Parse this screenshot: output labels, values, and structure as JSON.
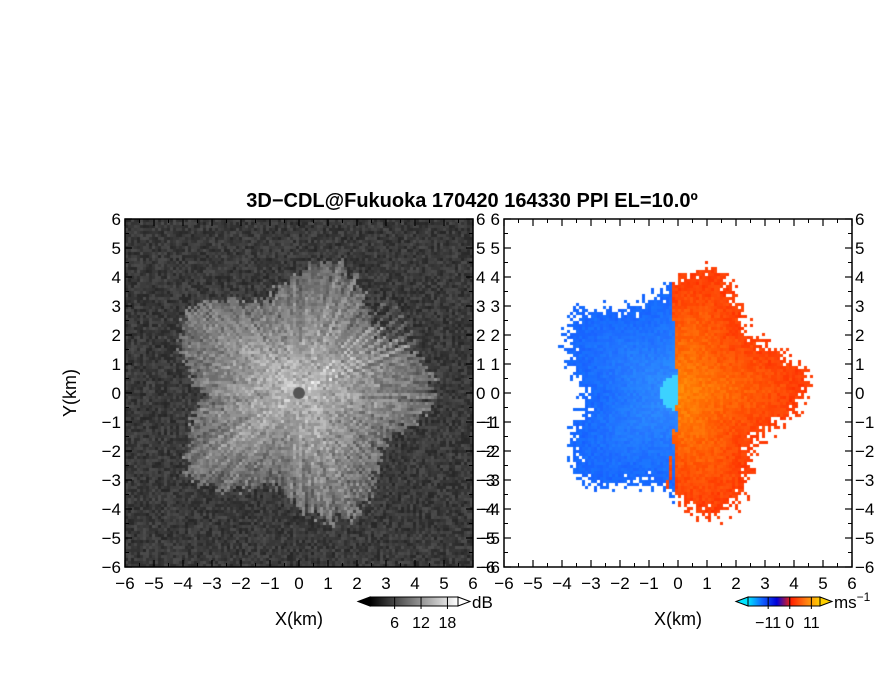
{
  "chart_data": {
    "title": "3D−CDL@Fukuoka 170420 164330 PPI EL=10.0º",
    "panels": [
      {
        "type": "heatmap",
        "quantity": "signal intensity",
        "xlabel": "X(km)",
        "ylabel": "Y(km)",
        "xlim": [
          -6,
          6
        ],
        "ylim": [
          -6,
          6
        ],
        "xticks": [
          "−6",
          "−5",
          "−4",
          "−3",
          "−2",
          "−1",
          "0",
          "1",
          "2",
          "3",
          "4",
          "5",
          "6"
        ],
        "yticks": [
          "−6",
          "−5",
          "−4",
          "−3",
          "−2",
          "−1",
          "0",
          "1",
          "2",
          "3",
          "4",
          "5",
          "6"
        ],
        "colorbar": {
          "unit": "dB",
          "ticks": [
            "6",
            "12",
            "18"
          ],
          "colors": [
            "#000000",
            "#ffffff"
          ]
        },
        "echo_radius_km": 4.3,
        "colormap": "gray"
      },
      {
        "type": "heatmap",
        "quantity": "radial velocity",
        "xlabel": "X(km)",
        "ylabel": "",
        "xlim": [
          -6,
          6
        ],
        "ylim": [
          -6,
          6
        ],
        "xticks": [
          "−6",
          "−5",
          "−4",
          "−3",
          "−2",
          "−1",
          "0",
          "1",
          "2",
          "3",
          "4",
          "5",
          "6"
        ],
        "yticks": [
          "−6",
          "−5",
          "−4",
          "−3",
          "−2",
          "−1",
          "0",
          "1",
          "2",
          "3",
          "4",
          "5",
          "6"
        ],
        "colorbar": {
          "unit": "ms",
          "unit_exp": "−1",
          "ticks": [
            "−11",
            "0",
            "11"
          ],
          "colors": [
            "#00e5ff",
            "#1060ff",
            "#0000d8",
            "#ff2000",
            "#ff7a10",
            "#ffd000"
          ]
        },
        "echo_radius_km": 4.2,
        "colormap": "blue-red"
      }
    ]
  }
}
